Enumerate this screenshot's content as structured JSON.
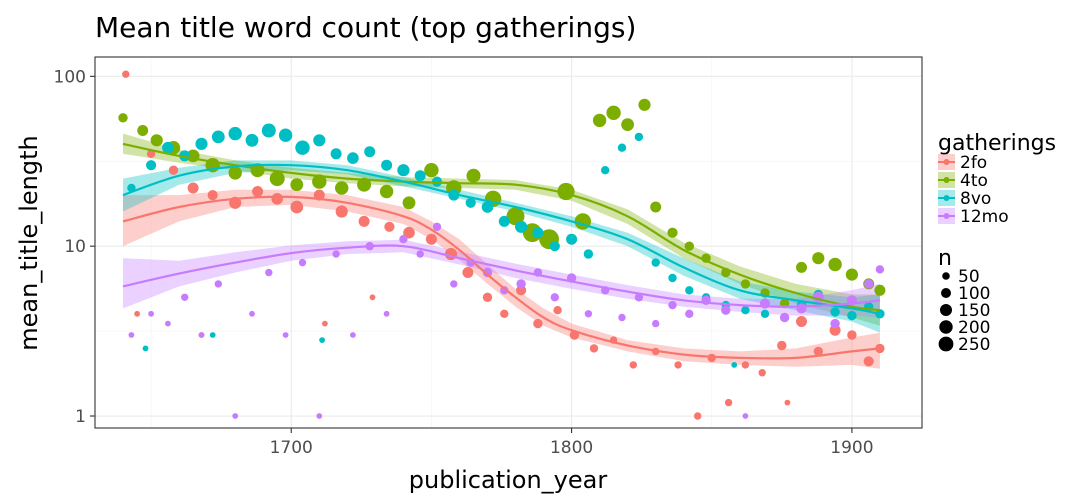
{
  "chart_data": {
    "type": "scatter",
    "title": "Mean title word count (top gatherings)",
    "xlabel": "publication_year",
    "ylabel": "mean_title_length",
    "xlim": [
      1630,
      1925
    ],
    "ylim": [
      0.85,
      130
    ],
    "y_scale": "log10",
    "x_ticks": [
      1700,
      1800,
      1900
    ],
    "y_ticks": [
      1,
      10,
      100
    ],
    "grid": true,
    "legend_position": "right",
    "legend_color_title": "gatherings",
    "legend_size_title": "n",
    "size_legend": [
      50,
      100,
      150,
      200,
      250
    ],
    "series": [
      {
        "name": "2fo",
        "color": "#F8766D",
        "smooth": {
          "x": [
            1640,
            1660,
            1680,
            1700,
            1720,
            1740,
            1750,
            1760,
            1770,
            1780,
            1790,
            1800,
            1820,
            1840,
            1860,
            1880,
            1900,
            1910
          ],
          "y": [
            14,
            17,
            19,
            19.5,
            18,
            15,
            12.5,
            9.5,
            6.8,
            5.0,
            3.8,
            3.2,
            2.6,
            2.3,
            2.2,
            2.2,
            2.4,
            2.5
          ],
          "ci_low": [
            10,
            14,
            17,
            17.5,
            16,
            13.5,
            11,
            8.3,
            6,
            4.4,
            3.4,
            2.9,
            2.4,
            2.1,
            2.0,
            1.95,
            2.0,
            1.9
          ],
          "ci_high": [
            20,
            20,
            21.5,
            21.5,
            20,
            17,
            14,
            11,
            7.8,
            5.6,
            4.3,
            3.5,
            2.8,
            2.5,
            2.4,
            2.5,
            2.9,
            3.1
          ]
        },
        "points": [
          [
            1641,
            103,
            20
          ],
          [
            1650,
            35,
            30
          ],
          [
            1658,
            28,
            40
          ],
          [
            1665,
            22,
            60
          ],
          [
            1672,
            20,
            50
          ],
          [
            1680,
            18,
            80
          ],
          [
            1688,
            21,
            60
          ],
          [
            1695,
            19,
            70
          ],
          [
            1702,
            17,
            90
          ],
          [
            1710,
            20,
            60
          ],
          [
            1718,
            16,
            80
          ],
          [
            1726,
            14,
            60
          ],
          [
            1735,
            13,
            50
          ],
          [
            1742,
            12,
            70
          ],
          [
            1750,
            11,
            60
          ],
          [
            1757,
            9,
            80
          ],
          [
            1763,
            7,
            60
          ],
          [
            1770,
            5,
            40
          ],
          [
            1776,
            4,
            30
          ],
          [
            1782,
            5.5,
            50
          ],
          [
            1788,
            3.5,
            40
          ],
          [
            1795,
            4.2,
            30
          ],
          [
            1801,
            3,
            40
          ],
          [
            1808,
            2.5,
            30
          ],
          [
            1815,
            2.8,
            20
          ],
          [
            1822,
            2,
            20
          ],
          [
            1830,
            2.4,
            20
          ],
          [
            1838,
            2,
            20
          ],
          [
            1845,
            1,
            20
          ],
          [
            1850,
            2.2,
            30
          ],
          [
            1856,
            1.2,
            20
          ],
          [
            1862,
            2,
            20
          ],
          [
            1868,
            1.8,
            20
          ],
          [
            1875,
            2.6,
            40
          ],
          [
            1882,
            3.6,
            60
          ],
          [
            1888,
            2.4,
            40
          ],
          [
            1894,
            3.2,
            60
          ],
          [
            1900,
            3.0,
            40
          ],
          [
            1906,
            2.1,
            50
          ],
          [
            1910,
            2.5,
            40
          ],
          [
            1645,
            4,
            10
          ],
          [
            1668,
            3,
            10
          ],
          [
            1712,
            3.5,
            10
          ],
          [
            1729,
            5,
            10
          ],
          [
            1845,
            1,
            10
          ],
          [
            1877,
            1.2,
            10
          ]
        ]
      },
      {
        "name": "4to",
        "color": "#7CAE00",
        "smooth": {
          "x": [
            1640,
            1660,
            1680,
            1700,
            1720,
            1740,
            1760,
            1780,
            1800,
            1820,
            1840,
            1860,
            1880,
            1900,
            1910
          ],
          "y": [
            40,
            34,
            30,
            27,
            25,
            24,
            23.5,
            23,
            20,
            15,
            9.5,
            6.8,
            5.3,
            4.4,
            4.2
          ],
          "ci_low": [
            35,
            31,
            28,
            25,
            23.5,
            22.5,
            22,
            21.5,
            18.5,
            13.5,
            8.5,
            6.0,
            4.6,
            3.8,
            3.4
          ],
          "ci_high": [
            46,
            37,
            32,
            29,
            27,
            25.5,
            25,
            24.5,
            21.5,
            16.5,
            10.5,
            7.6,
            6.0,
            5.2,
            5.2
          ]
        },
        "points": [
          [
            1640,
            57,
            40
          ],
          [
            1647,
            48,
            60
          ],
          [
            1652,
            42,
            80
          ],
          [
            1658,
            38,
            100
          ],
          [
            1665,
            34,
            90
          ],
          [
            1672,
            30,
            120
          ],
          [
            1680,
            27,
            100
          ],
          [
            1688,
            28,
            110
          ],
          [
            1695,
            25,
            130
          ],
          [
            1702,
            23,
            90
          ],
          [
            1710,
            24,
            120
          ],
          [
            1718,
            22,
            100
          ],
          [
            1726,
            23,
            110
          ],
          [
            1734,
            21,
            100
          ],
          [
            1742,
            18,
            90
          ],
          [
            1750,
            28,
            120
          ],
          [
            1758,
            22,
            140
          ],
          [
            1765,
            26,
            110
          ],
          [
            1772,
            19,
            160
          ],
          [
            1780,
            15,
            200
          ],
          [
            1786,
            12,
            220
          ],
          [
            1792,
            11,
            250
          ],
          [
            1798,
            21,
            180
          ],
          [
            1804,
            14,
            160
          ],
          [
            1810,
            55,
            100
          ],
          [
            1815,
            61,
            120
          ],
          [
            1820,
            52,
            90
          ],
          [
            1826,
            68,
            80
          ],
          [
            1830,
            17,
            60
          ],
          [
            1836,
            12,
            50
          ],
          [
            1842,
            10,
            40
          ],
          [
            1848,
            8.5,
            40
          ],
          [
            1855,
            7,
            40
          ],
          [
            1862,
            6,
            40
          ],
          [
            1869,
            5.3,
            40
          ],
          [
            1876,
            4.6,
            40
          ],
          [
            1882,
            7.5,
            60
          ],
          [
            1888,
            8.5,
            80
          ],
          [
            1894,
            7.8,
            100
          ],
          [
            1900,
            6.8,
            80
          ],
          [
            1906,
            6.0,
            60
          ],
          [
            1910,
            5.5,
            60
          ]
        ]
      },
      {
        "name": "8vo",
        "color": "#00BFC4",
        "smooth": {
          "x": [
            1640,
            1660,
            1680,
            1700,
            1720,
            1740,
            1760,
            1780,
            1800,
            1820,
            1840,
            1860,
            1880,
            1900,
            1910
          ],
          "y": [
            20,
            26,
            29.5,
            30,
            28,
            24,
            20,
            17,
            14,
            11,
            7.5,
            5.5,
            4.8,
            4.3,
            4.0
          ],
          "ci_low": [
            16,
            23,
            27,
            28,
            26.5,
            22.5,
            19,
            16,
            13,
            10,
            6.7,
            4.9,
            4.2,
            3.6,
            3.1
          ],
          "ci_high": [
            25,
            29,
            32,
            32,
            30,
            25.5,
            21.5,
            18,
            15,
            12,
            8.5,
            6.2,
            5.4,
            5.0,
            5.2
          ]
        },
        "points": [
          [
            1643,
            22,
            30
          ],
          [
            1650,
            30,
            50
          ],
          [
            1656,
            38,
            70
          ],
          [
            1662,
            34,
            60
          ],
          [
            1668,
            40,
            80
          ],
          [
            1674,
            44,
            90
          ],
          [
            1680,
            46,
            100
          ],
          [
            1686,
            42,
            90
          ],
          [
            1692,
            48,
            110
          ],
          [
            1698,
            45,
            100
          ],
          [
            1704,
            38,
            120
          ],
          [
            1710,
            42,
            80
          ],
          [
            1716,
            35,
            60
          ],
          [
            1722,
            33,
            70
          ],
          [
            1728,
            36,
            60
          ],
          [
            1734,
            30,
            60
          ],
          [
            1740,
            28,
            80
          ],
          [
            1746,
            26,
            60
          ],
          [
            1752,
            24,
            50
          ],
          [
            1758,
            20,
            60
          ],
          [
            1764,
            18,
            50
          ],
          [
            1770,
            17,
            70
          ],
          [
            1776,
            14,
            60
          ],
          [
            1782,
            13,
            80
          ],
          [
            1788,
            12,
            60
          ],
          [
            1794,
            10,
            50
          ],
          [
            1800,
            11,
            60
          ],
          [
            1806,
            9,
            40
          ],
          [
            1812,
            28,
            30
          ],
          [
            1818,
            38,
            30
          ],
          [
            1824,
            44,
            30
          ],
          [
            1830,
            8,
            30
          ],
          [
            1836,
            6.5,
            30
          ],
          [
            1842,
            5.5,
            30
          ],
          [
            1848,
            5,
            30
          ],
          [
            1855,
            4.5,
            30
          ],
          [
            1862,
            4.2,
            30
          ],
          [
            1869,
            4,
            30
          ],
          [
            1876,
            3.8,
            30
          ],
          [
            1882,
            4.5,
            40
          ],
          [
            1888,
            5.2,
            40
          ],
          [
            1894,
            4.1,
            40
          ],
          [
            1900,
            3.9,
            40
          ],
          [
            1906,
            4.4,
            40
          ],
          [
            1910,
            4.0,
            40
          ],
          [
            1648,
            2.5,
            10
          ],
          [
            1672,
            3,
            10
          ],
          [
            1711,
            2.8,
            10
          ],
          [
            1858,
            2,
            10
          ]
        ]
      },
      {
        "name": "12mo",
        "color": "#C77CFF",
        "smooth": {
          "x": [
            1640,
            1660,
            1680,
            1700,
            1720,
            1740,
            1760,
            1780,
            1800,
            1820,
            1840,
            1860,
            1880,
            1900,
            1910
          ],
          "y": [
            5.8,
            6.9,
            8.0,
            9.1,
            9.8,
            10.0,
            8.5,
            7.2,
            6.2,
            5.4,
            4.8,
            4.5,
            4.4,
            4.6,
            4.8
          ],
          "ci_low": [
            4.3,
            5.8,
            7.0,
            8.2,
            9.0,
            9.2,
            7.8,
            6.5,
            5.6,
            4.9,
            4.4,
            4.1,
            3.9,
            3.9,
            3.8
          ],
          "ci_high": [
            8.5,
            8.2,
            9.2,
            10.1,
            10.7,
            10.9,
            9.3,
            7.9,
            6.8,
            5.9,
            5.2,
            4.9,
            4.9,
            5.5,
            6.0
          ]
        },
        "points": [
          [
            1643,
            3,
            10
          ],
          [
            1650,
            4,
            10
          ],
          [
            1656,
            3.5,
            10
          ],
          [
            1662,
            5,
            20
          ],
          [
            1668,
            3,
            10
          ],
          [
            1674,
            6,
            20
          ],
          [
            1680,
            1,
            10
          ],
          [
            1686,
            4,
            10
          ],
          [
            1692,
            7,
            20
          ],
          [
            1698,
            3,
            10
          ],
          [
            1704,
            8,
            20
          ],
          [
            1710,
            1,
            10
          ],
          [
            1716,
            9,
            20
          ],
          [
            1722,
            3,
            10
          ],
          [
            1728,
            10,
            30
          ],
          [
            1734,
            4,
            10
          ],
          [
            1740,
            11,
            30
          ],
          [
            1746,
            9,
            20
          ],
          [
            1752,
            13,
            30
          ],
          [
            1758,
            6,
            20
          ],
          [
            1764,
            8,
            30
          ],
          [
            1770,
            7,
            40
          ],
          [
            1776,
            5.5,
            30
          ],
          [
            1782,
            6,
            40
          ],
          [
            1788,
            7,
            30
          ],
          [
            1794,
            5,
            30
          ],
          [
            1800,
            6.5,
            40
          ],
          [
            1806,
            4,
            20
          ],
          [
            1812,
            5.5,
            30
          ],
          [
            1818,
            3.8,
            20
          ],
          [
            1824,
            5,
            30
          ],
          [
            1830,
            3.5,
            20
          ],
          [
            1836,
            4.5,
            30
          ],
          [
            1842,
            4,
            30
          ],
          [
            1848,
            4.8,
            40
          ],
          [
            1855,
            4.2,
            40
          ],
          [
            1862,
            1,
            10
          ],
          [
            1869,
            4.6,
            50
          ],
          [
            1876,
            3.8,
            40
          ],
          [
            1882,
            4.3,
            50
          ],
          [
            1888,
            5.0,
            60
          ],
          [
            1894,
            3.5,
            40
          ],
          [
            1900,
            4.8,
            50
          ],
          [
            1906,
            6.0,
            40
          ],
          [
            1910,
            7.3,
            30
          ]
        ]
      }
    ]
  }
}
